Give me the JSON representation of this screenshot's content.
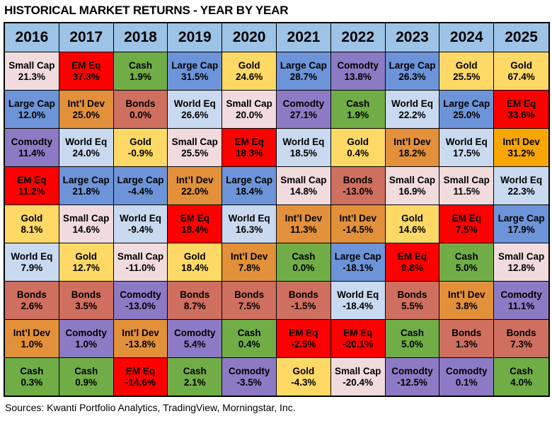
{
  "title": "HISTORICAL MARKET RETURNS - YEAR BY YEAR",
  "footer": "Sources: Kwanti Portfolio Analytics, TradingView, Morningstar, Inc.",
  "styles": {
    "header_bg": "#9DC3E6",
    "border_color": "#000000",
    "asset_colors": {
      "Small Cap": "#F1DBDD",
      "EM Eq": "#FF0000",
      "Cash": "#70AD47",
      "Large Cap": "#6D94D8",
      "Gold": "#FFD966",
      "Comodty": "#8C7BC4",
      "Int’l Dev": "#E2913A",
      "World Eq": "#C9D9F0",
      "Bonds": "#CF6F5F"
    }
  },
  "chart_data": {
    "type": "table",
    "title": "HISTORICAL MARKET RETURNS - YEAR BY YEAR",
    "years": [
      "2016",
      "2017",
      "2018",
      "2019",
      "2020",
      "2021",
      "2022",
      "2023",
      "2024",
      "2025"
    ],
    "columns": [
      {
        "year": "2016",
        "cells": [
          {
            "asset": "Small Cap",
            "value": "21.3%"
          },
          {
            "asset": "Large Cap",
            "value": "12.0%"
          },
          {
            "asset": "Comodty",
            "value": "11.4%"
          },
          {
            "asset": "EM Eq",
            "value": "11.2%"
          },
          {
            "asset": "Gold",
            "value": "8.1%"
          },
          {
            "asset": "World Eq",
            "value": "7.9%"
          },
          {
            "asset": "Bonds",
            "value": "2.6%"
          },
          {
            "asset": "Int’l Dev",
            "value": "1.0%"
          },
          {
            "asset": "Cash",
            "value": "0.3%"
          }
        ]
      },
      {
        "year": "2017",
        "cells": [
          {
            "asset": "EM Eq",
            "value": "37.3%"
          },
          {
            "asset": "Int’l Dev",
            "value": "25.0%"
          },
          {
            "asset": "World Eq",
            "value": "24.0%"
          },
          {
            "asset": "Large Cap",
            "value": "21.8%"
          },
          {
            "asset": "Small Cap",
            "value": "14.6%"
          },
          {
            "asset": "Gold",
            "value": "12.7%"
          },
          {
            "asset": "Bonds",
            "value": "3.5%"
          },
          {
            "asset": "Comodty",
            "value": "1.0%"
          },
          {
            "asset": "Cash",
            "value": "0.9%"
          }
        ]
      },
      {
        "year": "2018",
        "cells": [
          {
            "asset": "Cash",
            "value": "1.9%"
          },
          {
            "asset": "Bonds",
            "value": "0.0%"
          },
          {
            "asset": "Gold",
            "value": "-0.9%"
          },
          {
            "asset": "Large Cap",
            "value": "-4.4%"
          },
          {
            "asset": "World Eq",
            "value": "-9.4%"
          },
          {
            "asset": "Small Cap",
            "value": "-11.0%"
          },
          {
            "asset": "Comodty",
            "value": "-13.0%"
          },
          {
            "asset": "Int’l Dev",
            "value": "-13.8%"
          },
          {
            "asset": "EM Eq",
            "value": "-14.6%"
          }
        ]
      },
      {
        "year": "2019",
        "cells": [
          {
            "asset": "Large Cap",
            "value": "31.5%"
          },
          {
            "asset": "World Eq",
            "value": "26.6%"
          },
          {
            "asset": "Small Cap",
            "value": "25.5%"
          },
          {
            "asset": "Int’l Dev",
            "value": "22.0%"
          },
          {
            "asset": "EM Eq",
            "value": "18.4%"
          },
          {
            "asset": "Gold",
            "value": "18.4%"
          },
          {
            "asset": "Bonds",
            "value": "8.7%"
          },
          {
            "asset": "Comodty",
            "value": "5.4%"
          },
          {
            "asset": "Cash",
            "value": "2.1%"
          }
        ]
      },
      {
        "year": "2020",
        "cells": [
          {
            "asset": "Gold",
            "value": "24.6%"
          },
          {
            "asset": "Small Cap",
            "value": "20.0%"
          },
          {
            "asset": "EM Eq",
            "value": "18.3%"
          },
          {
            "asset": "Large Cap",
            "value": "18.4%"
          },
          {
            "asset": "World Eq",
            "value": "16.3%"
          },
          {
            "asset": "Int’l Dev",
            "value": "7.8%"
          },
          {
            "asset": "Bonds",
            "value": "7.5%"
          },
          {
            "asset": "Cash",
            "value": "0.4%"
          },
          {
            "asset": "Comodty",
            "value": "-3.5%"
          }
        ]
      },
      {
        "year": "2021",
        "cells": [
          {
            "asset": "Large Cap",
            "value": "28.7%"
          },
          {
            "asset": "Comodty",
            "value": "27.1%"
          },
          {
            "asset": "World Eq",
            "value": "18.5%"
          },
          {
            "asset": "Small Cap",
            "value": "14.8%"
          },
          {
            "asset": "Int’l Dev",
            "value": "11.3%"
          },
          {
            "asset": "Cash",
            "value": "0.0%"
          },
          {
            "asset": "Bonds",
            "value": "-1.5%"
          },
          {
            "asset": "EM Eq",
            "value": "-2.5%"
          },
          {
            "asset": "Gold",
            "value": "-4.3%"
          }
        ]
      },
      {
        "year": "2022",
        "cells": [
          {
            "asset": "Comodty",
            "value": "13.8%"
          },
          {
            "asset": "Cash",
            "value": "1.9%"
          },
          {
            "asset": "Gold",
            "value": "0.4%"
          },
          {
            "asset": "Bonds",
            "value": "-13.0%"
          },
          {
            "asset": "Int’l Dev",
            "value": "-14.5%"
          },
          {
            "asset": "Large Cap",
            "value": "-18.1%"
          },
          {
            "asset": "World Eq",
            "value": "-18.4%"
          },
          {
            "asset": "EM Eq",
            "value": "-20.1%"
          },
          {
            "asset": "Small Cap",
            "value": "-20.4%"
          }
        ]
      },
      {
        "year": "2023",
        "cells": [
          {
            "asset": "Large Cap",
            "value": "26.3%"
          },
          {
            "asset": "World Eq",
            "value": "22.2%"
          },
          {
            "asset": "Int’l Dev",
            "value": "18.2%"
          },
          {
            "asset": "Small Cap",
            "value": "16.9%"
          },
          {
            "asset": "Gold",
            "value": "14.6%"
          },
          {
            "asset": "EM Eq",
            "value": "9.8%"
          },
          {
            "asset": "Bonds",
            "value": "5.5%"
          },
          {
            "asset": "Cash",
            "value": "5.0%"
          },
          {
            "asset": "Comodty",
            "value": "-12.5%"
          }
        ]
      },
      {
        "year": "2024",
        "cells": [
          {
            "asset": "Gold",
            "value": "25.5%"
          },
          {
            "asset": "Large Cap",
            "value": "25.0%"
          },
          {
            "asset": "World Eq",
            "value": "17.5%"
          },
          {
            "asset": "Small Cap",
            "value": "11.5%"
          },
          {
            "asset": "EM Eq",
            "value": "7.5%"
          },
          {
            "asset": "Cash",
            "value": "5.0%"
          },
          {
            "asset": "Int’l Dev",
            "value": "3.8%"
          },
          {
            "asset": "Bonds",
            "value": "1.3%"
          },
          {
            "asset": "Comodty",
            "value": "0.1%"
          }
        ]
      },
      {
        "year": "2025",
        "cells": [
          {
            "asset": "Gold",
            "value": "67.4%"
          },
          {
            "asset": "EM Eq",
            "value": "33.6%"
          },
          {
            "asset": "Int’l Dev",
            "value": "31.2%",
            "color": "#F9A602"
          },
          {
            "asset": "World Eq",
            "value": "22.3%"
          },
          {
            "asset": "Large Cap",
            "value": "17.9%"
          },
          {
            "asset": "Small Cap",
            "value": "12.8%"
          },
          {
            "asset": "Comodty",
            "value": "11.1%"
          },
          {
            "asset": "Bonds",
            "value": "7.3%"
          },
          {
            "asset": "Cash",
            "value": "4.0%"
          }
        ]
      }
    ]
  }
}
